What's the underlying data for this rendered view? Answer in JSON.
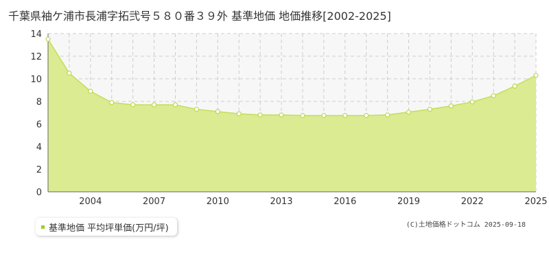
{
  "title": "千葉県袖ケ浦市長浦字拓弐号５８０番３９外 基準地価 地価推移[2002-2025]",
  "legend": {
    "label": "基準地価 平均坪単価(万円/坪)",
    "color": "#a0cc2a"
  },
  "credit": "(C)土地価格ドットコム 2025-09-18",
  "colors": {
    "fill": "#dbeb91",
    "line": "#c2de5a",
    "point_stroke": "#bcd84e",
    "grid": "#cccccc"
  },
  "chart_data": {
    "type": "area",
    "title": "",
    "xlabel": "",
    "ylabel": "",
    "x": [
      2002,
      2003,
      2004,
      2005,
      2006,
      2007,
      2008,
      2009,
      2010,
      2011,
      2012,
      2013,
      2014,
      2015,
      2016,
      2017,
      2018,
      2019,
      2020,
      2021,
      2022,
      2023,
      2024,
      2025
    ],
    "series": [
      {
        "name": "基準地価 平均坪単価(万円/坪)",
        "values": [
          13.5,
          10.5,
          8.9,
          7.9,
          7.7,
          7.7,
          7.7,
          7.3,
          7.1,
          6.9,
          6.8,
          6.8,
          6.75,
          6.75,
          6.75,
          6.75,
          6.8,
          7.05,
          7.3,
          7.6,
          7.95,
          8.5,
          9.35,
          10.3
        ]
      }
    ],
    "xlim": [
      2002,
      2025
    ],
    "ylim": [
      0,
      14
    ],
    "x_ticks": [
      "2004",
      "2007",
      "2010",
      "2013",
      "2016",
      "2019",
      "2022",
      "2025"
    ],
    "y_ticks": [
      "0",
      "2",
      "4",
      "6",
      "8",
      "10",
      "12",
      "14"
    ],
    "grid": true
  }
}
